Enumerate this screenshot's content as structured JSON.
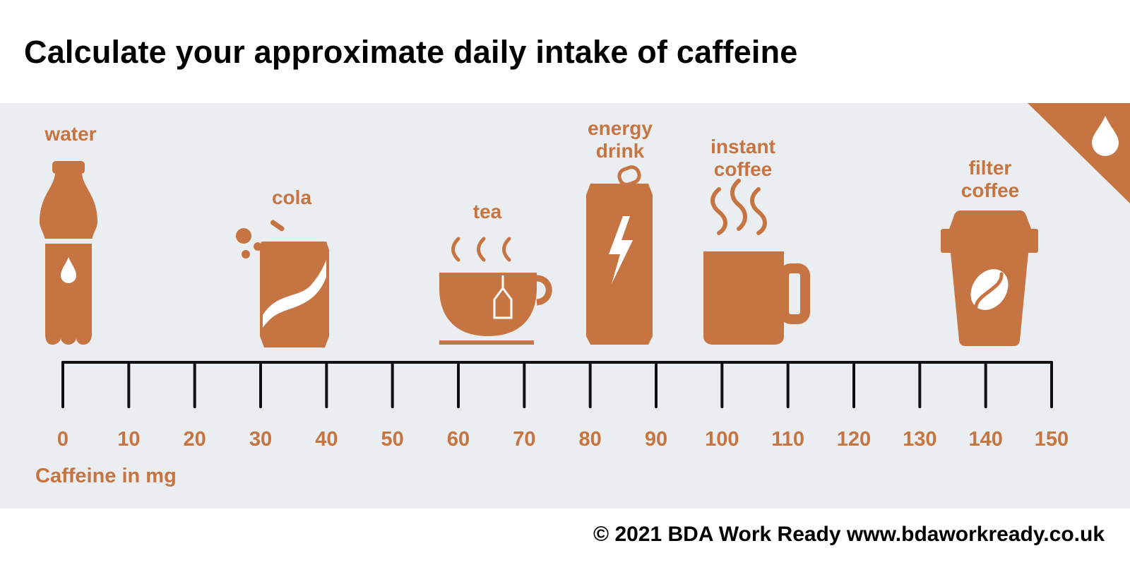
{
  "title": "Calculate your approximate daily intake of caffeine",
  "footer": "© 2021 BDA Work Ready www.bdaworkready.co.uk",
  "accent_color": "#c57442",
  "panel_color": "#ebeef0",
  "corner_icon": "water-drop-icon",
  "drinks": [
    {
      "id": "water",
      "label_lines": [
        "water"
      ],
      "caffeine_mg": 0,
      "icon": "bottle-icon"
    },
    {
      "id": "cola",
      "label_lines": [
        "cola"
      ],
      "caffeine_mg": 35,
      "icon": "soda-can-icon"
    },
    {
      "id": "tea",
      "label_lines": [
        "tea"
      ],
      "caffeine_mg": 65,
      "icon": "teacup-icon"
    },
    {
      "id": "energy-drink",
      "label_lines": [
        "energy",
        "drink"
      ],
      "caffeine_mg": 85,
      "icon": "energy-can-icon"
    },
    {
      "id": "instant-coffee",
      "label_lines": [
        "instant",
        "coffee"
      ],
      "caffeine_mg": 103,
      "icon": "mug-icon"
    },
    {
      "id": "filter-coffee",
      "label_lines": [
        "filter",
        "coffee"
      ],
      "caffeine_mg": 140,
      "icon": "takeaway-cup-icon"
    }
  ],
  "axis": {
    "title": "Caffeine in mg",
    "min": 0,
    "max": 150,
    "step": 10,
    "tick_labels": [
      "0",
      "10",
      "20",
      "30",
      "40",
      "50",
      "60",
      "70",
      "80",
      "90",
      "100",
      "110",
      "120",
      "130",
      "140",
      "150"
    ]
  }
}
